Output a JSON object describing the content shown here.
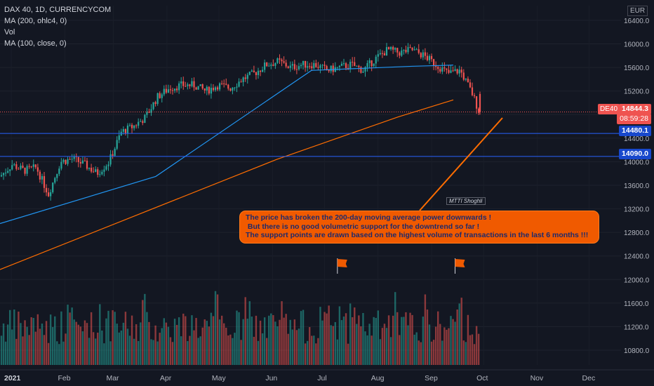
{
  "legend": {
    "symbol": "DAX 40, 1D, CURRENCYCOM",
    "ma200": "MA (200, ohlc4, 0)",
    "vol": "Vol",
    "ma100": "MA (100, close, 0)"
  },
  "currency": "EUR",
  "price_tags": {
    "symbol_tag": "DE40",
    "last_price": "14844.3",
    "countdown": "08:59:28",
    "support1": "14480.1",
    "support2": "14090.0"
  },
  "callout": {
    "line1": "The price has broken the 200-day moving average power downwards !",
    "line2": " But there is no good volumetric support for the downtrend so far !",
    "line3": "The support points are drawn based on the highest volume of transactions in the last 6 months !!!"
  },
  "watermark": "MTTI Shoghli",
  "colors": {
    "background": "#131722",
    "up": "#26a69a",
    "down": "#ef5350",
    "ma_blue": "#2196f3",
    "ma_orange": "#ff6d00",
    "support_line": "#2962ff",
    "callout": "#f05a00"
  },
  "chart_data": {
    "type": "candlestick",
    "y_axis": {
      "ticks": [
        16400.0,
        16000.0,
        15600.0,
        15200.0,
        14800.0,
        14400.0,
        14000.0,
        13600.0,
        13200.0,
        12800.0,
        12400.0,
        12000.0,
        11600.0,
        11200.0,
        10800.0
      ],
      "tick_labels": [
        "16400.0",
        "16000.0",
        "15600.0",
        "15200.0",
        "14800.0",
        "14400.0",
        "14000.0",
        "13600.0",
        "13200.0",
        "12800.0",
        "12400.0",
        "12000.0",
        "11600.0",
        "11200.0",
        "10800.0"
      ],
      "range": [
        10550,
        16650
      ]
    },
    "x_axis": {
      "labels": [
        "2021",
        "Feb",
        "Mar",
        "Apr",
        "May",
        "Jun",
        "Jul",
        "Aug",
        "Sep",
        "Oct",
        "Nov",
        "Dec"
      ]
    },
    "price_path": [
      [
        "2021-01-01",
        13750
      ],
      [
        "2021-01-08",
        13950
      ],
      [
        "2021-01-15",
        13850
      ],
      [
        "2021-01-22",
        13900
      ],
      [
        "2021-01-29",
        13450
      ],
      [
        "2021-02-05",
        14000
      ],
      [
        "2021-02-12",
        14050
      ],
      [
        "2021-02-19",
        13950
      ],
      [
        "2021-02-26",
        13800
      ],
      [
        "2021-03-05",
        14000
      ],
      [
        "2021-03-12",
        14500
      ],
      [
        "2021-03-19",
        14600
      ],
      [
        "2021-03-26",
        14750
      ],
      [
        "2021-04-02",
        15100
      ],
      [
        "2021-04-09",
        15250
      ],
      [
        "2021-04-16",
        15300
      ],
      [
        "2021-04-23",
        15300
      ],
      [
        "2021-04-30",
        15200
      ],
      [
        "2021-05-07",
        15300
      ],
      [
        "2021-05-14",
        15250
      ],
      [
        "2021-05-21",
        15400
      ],
      [
        "2021-05-28",
        15500
      ],
      [
        "2021-06-04",
        15650
      ],
      [
        "2021-06-11",
        15700
      ],
      [
        "2021-06-18",
        15600
      ],
      [
        "2021-06-25",
        15650
      ],
      [
        "2021-07-02",
        15650
      ],
      [
        "2021-07-09",
        15550
      ],
      [
        "2021-07-16",
        15600
      ],
      [
        "2021-07-23",
        15650
      ],
      [
        "2021-07-30",
        15550
      ],
      [
        "2021-08-06",
        15750
      ],
      [
        "2021-08-13",
        15900
      ],
      [
        "2021-08-20",
        15850
      ],
      [
        "2021-08-27",
        15900
      ],
      [
        "2021-09-03",
        15800
      ],
      [
        "2021-09-10",
        15650
      ],
      [
        "2021-09-17",
        15500
      ],
      [
        "2021-09-24",
        15550
      ],
      [
        "2021-10-01",
        15150
      ],
      [
        "2021-10-05",
        14844
      ]
    ],
    "ma200_blue": [
      [
        0,
        12950
      ],
      [
        90,
        13750
      ],
      [
        180,
        15550
      ],
      [
        238,
        15620
      ],
      [
        262,
        15640
      ]
    ],
    "ma100_orange": [
      [
        0,
        12170
      ],
      [
        160,
        14040
      ],
      [
        230,
        14760
      ],
      [
        262,
        15050
      ]
    ],
    "support_levels": [
      14480.1,
      14090.0
    ],
    "last_price": 14844.3,
    "volume_flags": [
      "2021-07-15",
      "2021-09-21"
    ]
  }
}
